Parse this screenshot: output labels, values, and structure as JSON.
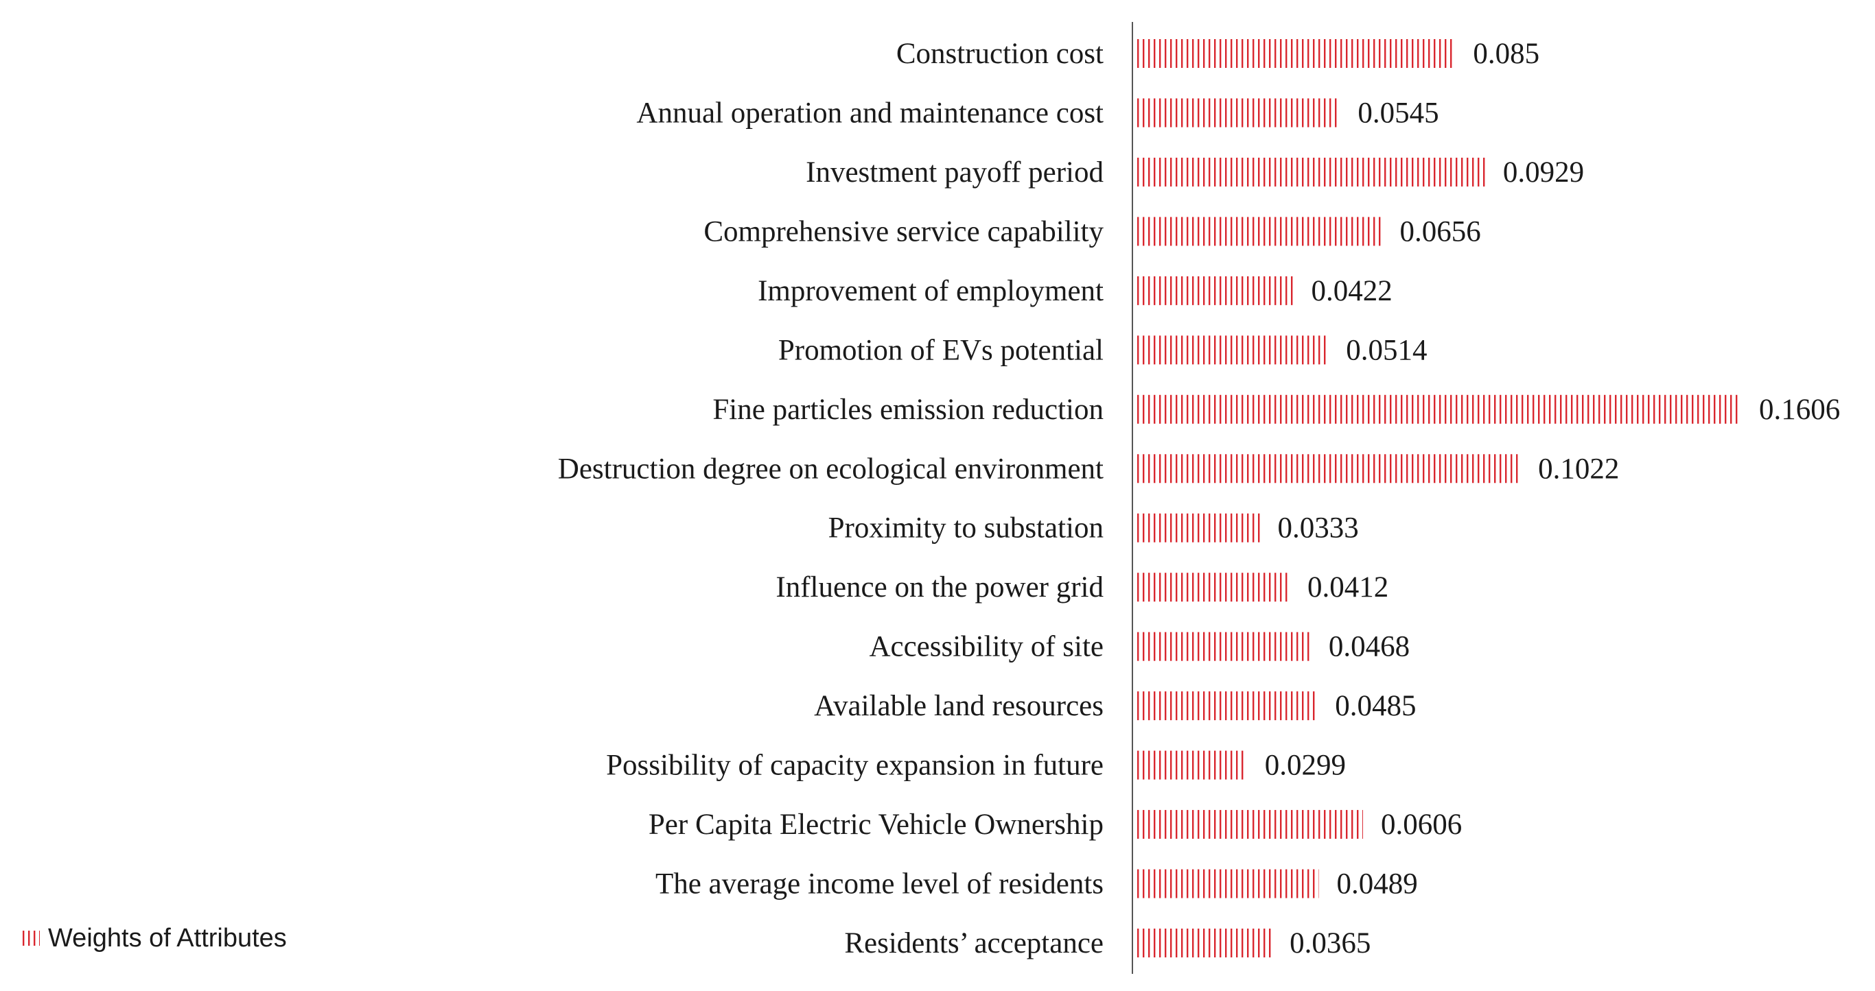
{
  "chart_data": {
    "type": "bar",
    "orientation": "horizontal",
    "title": "",
    "xlabel": "",
    "ylabel": "",
    "grid": false,
    "xlim": [
      0,
      0.1606
    ],
    "bar_color": "#d9262e",
    "bar_pattern": "vertical-hatch",
    "legend": {
      "position": "bottom-left",
      "label": "Weights of Attributes"
    },
    "series": [
      {
        "name": "Weights of Attributes",
        "values": [
          0.085,
          0.0545,
          0.0929,
          0.0656,
          0.0422,
          0.0514,
          0.1606,
          0.1022,
          0.0333,
          0.0412,
          0.0468,
          0.0485,
          0.0299,
          0.0606,
          0.0489,
          0.0365
        ],
        "value_labels": [
          "0.085",
          "0.0545",
          "0.0929",
          "0.0656",
          "0.0422",
          "0.0514",
          "0.1606",
          "0.1022",
          "0.0333",
          "0.0412",
          "0.0468",
          "0.0485",
          "0.0299",
          "0.0606",
          "0.0489",
          "0.0365"
        ]
      }
    ],
    "categories": [
      "Construction cost",
      "Annual operation and maintenance cost",
      "Investment payoff period",
      "Comprehensive service capability",
      "Improvement of employment",
      "Promotion of EVs potential",
      "Fine particles emission reduction",
      "Destruction degree on ecological environment",
      "Proximity to substation",
      "Influence on the power grid",
      "Accessibility of site",
      "Available land resources",
      "Possibility of capacity expansion in future",
      "Per Capita Electric Vehicle Ownership",
      "The average income level of residents",
      "Residents’ acceptance"
    ]
  }
}
